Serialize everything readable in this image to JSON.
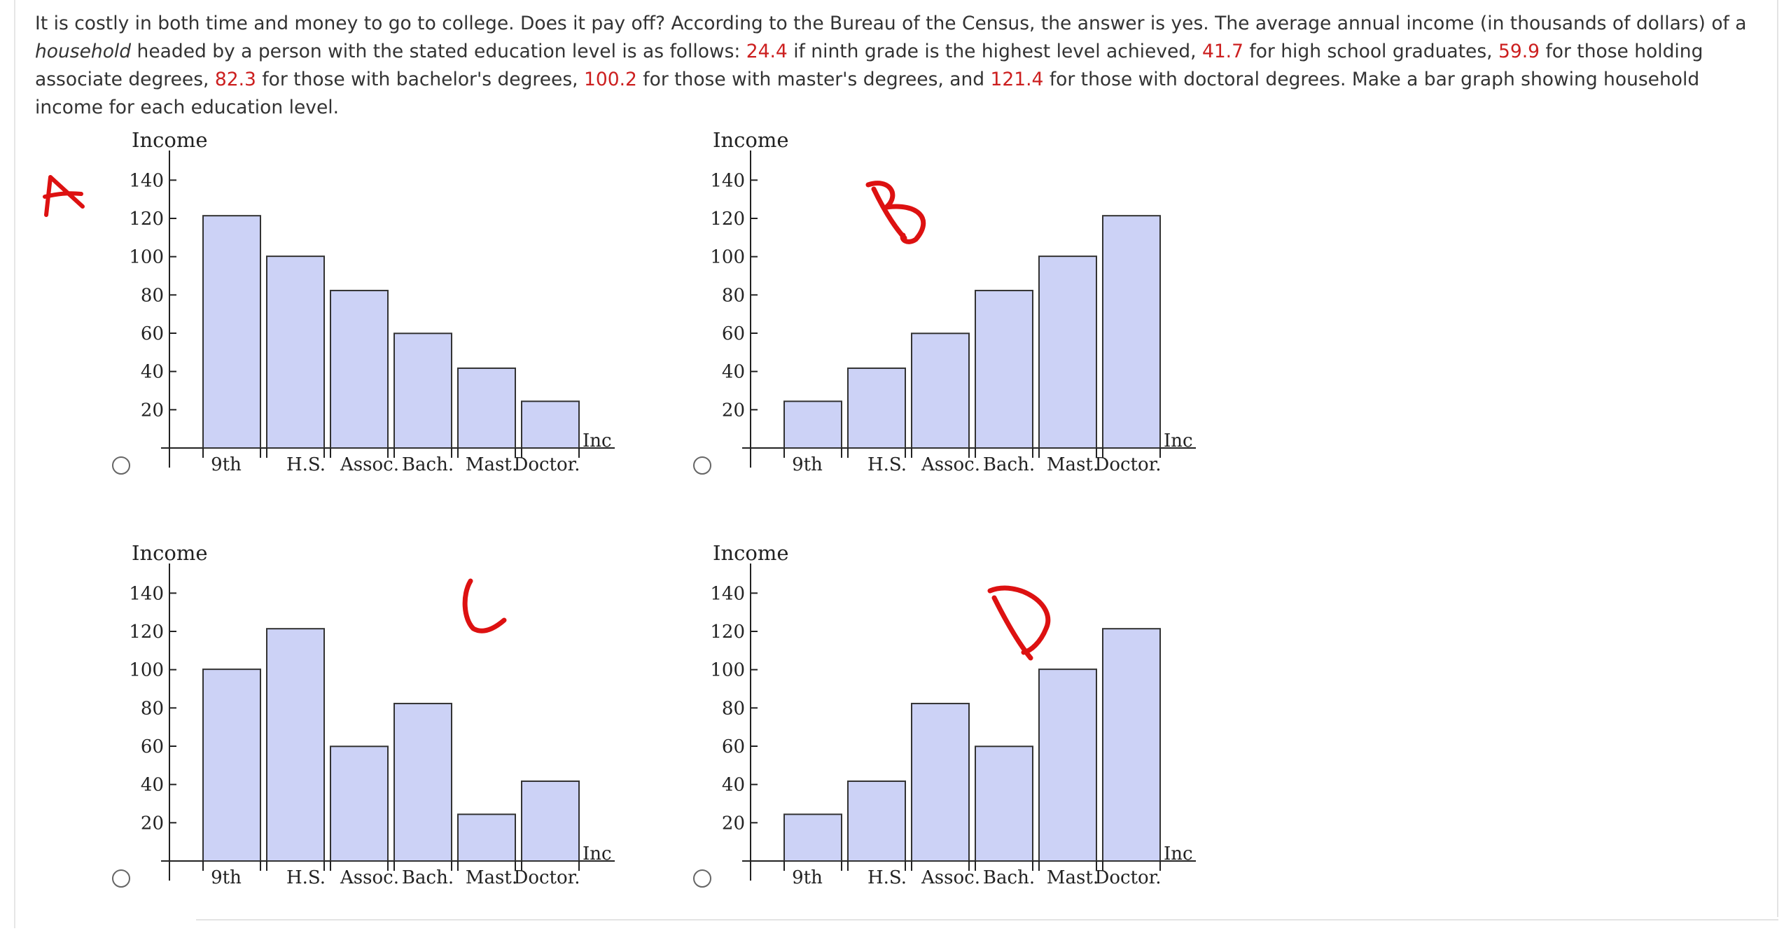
{
  "question": {
    "s1": "It is costly in both time and money to go to college. Does it pay off? According to the Bureau of the Census, the answer is yes. The average annual income (in thousands of dollars) of a ",
    "household": "household",
    "s2": " headed by a person with the stated education level is as follows: ",
    "v1": "24.4",
    "s3": " if ninth grade is the highest level achieved, ",
    "v2": "41.7",
    "s4": " for high school graduates, ",
    "v3": "59.9",
    "s5": " for those holding associate degrees, ",
    "v4": "82.3",
    "s6": " for those with bachelor's degrees, ",
    "v5": "100.2",
    "s7": " for those with master's degrees, and ",
    "v6": "121.4",
    "s8": " for those with doctoral degrees. Make a bar graph showing household income for each education level."
  },
  "annotations": {
    "a": "A",
    "b": "B",
    "c": "C",
    "d": "D"
  },
  "colors": {
    "bar_fill": "#ccd2f6",
    "highlight_number": "#cc1f1f",
    "annotation_ink": "#dd1111"
  },
  "chart_data": [
    {
      "type": "bar",
      "ylabel": "Income",
      "xlabel": "Inc",
      "categories": [
        "9th",
        "H.S.",
        "Assoc.",
        "Bach.",
        "Mast.",
        "Doctor."
      ],
      "values": [
        121.4,
        100.2,
        82.3,
        59.9,
        41.7,
        24.4
      ],
      "yticks": [
        20,
        40,
        60,
        80,
        100,
        120,
        140
      ],
      "ylim": [
        0,
        150
      ],
      "grid": false
    },
    {
      "type": "bar",
      "ylabel": "Income",
      "xlabel": "Inc",
      "categories": [
        "9th",
        "H.S.",
        "Assoc.",
        "Bach.",
        "Mast.",
        "Doctor."
      ],
      "values": [
        24.4,
        41.7,
        59.9,
        82.3,
        100.2,
        121.4
      ],
      "yticks": [
        20,
        40,
        60,
        80,
        100,
        120,
        140
      ],
      "ylim": [
        0,
        150
      ],
      "grid": false
    },
    {
      "type": "bar",
      "ylabel": "Income",
      "xlabel": "Inc",
      "categories": [
        "9th",
        "H.S.",
        "Assoc.",
        "Bach.",
        "Mast.",
        "Doctor."
      ],
      "values": [
        100.2,
        121.4,
        59.9,
        82.3,
        24.4,
        41.7
      ],
      "yticks": [
        20,
        40,
        60,
        80,
        100,
        120,
        140
      ],
      "ylim": [
        0,
        150
      ],
      "grid": false
    },
    {
      "type": "bar",
      "ylabel": "Income",
      "xlabel": "Inc",
      "categories": [
        "9th",
        "H.S.",
        "Assoc.",
        "Bach.",
        "Mast.",
        "Doctor."
      ],
      "values": [
        24.4,
        41.7,
        82.3,
        59.9,
        100.2,
        121.4
      ],
      "yticks": [
        20,
        40,
        60,
        80,
        100,
        120,
        140
      ],
      "ylim": [
        0,
        150
      ],
      "grid": false
    }
  ]
}
